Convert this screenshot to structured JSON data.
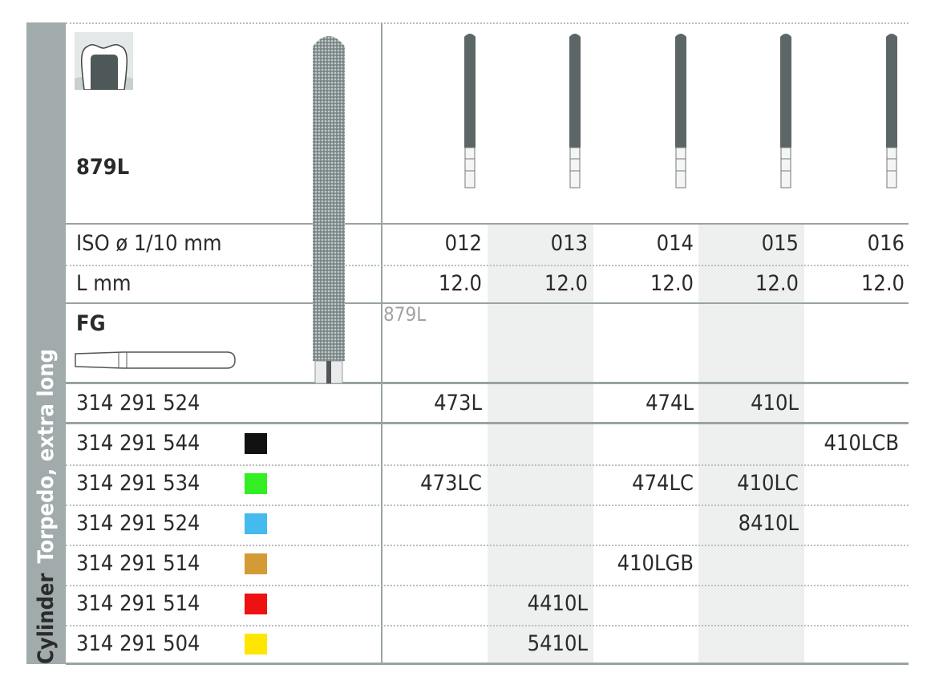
{
  "side_label": {
    "shape": "Cylinder",
    "desc": "Torpedo, extra long"
  },
  "model": "879L",
  "ghost_model": "879L",
  "shank_type": "FG",
  "rows_header": {
    "iso_label": "ISO ø 1/10 mm",
    "length_label": "L mm"
  },
  "columns": [
    {
      "iso": "012",
      "length": "12.0"
    },
    {
      "iso": "013",
      "length": "12.0"
    },
    {
      "iso": "014",
      "length": "12.0"
    },
    {
      "iso": "015",
      "length": "12.0"
    },
    {
      "iso": "016",
      "length": "12.0"
    }
  ],
  "products": [
    {
      "code": "314 291 524",
      "color": "",
      "cells": [
        "473L",
        "",
        "474L",
        "410L",
        ""
      ]
    },
    {
      "code": "314 291 544",
      "color": "#111111",
      "cells": [
        "",
        "",
        "",
        "",
        "410LCB"
      ]
    },
    {
      "code": "314 291 534",
      "color": "#33ee22",
      "cells": [
        "473LC",
        "",
        "474LC",
        "410LC",
        ""
      ]
    },
    {
      "code": "314 291 524",
      "color": "#44bbee",
      "cells": [
        "",
        "",
        "",
        "8410L",
        ""
      ]
    },
    {
      "code": "314 291 514",
      "color": "#d49a35",
      "cells": [
        "",
        "",
        "410LGB",
        "",
        ""
      ]
    },
    {
      "code": "314 291 514",
      "color": "#ee1111",
      "cells": [
        "",
        "4410L",
        "",
        "",
        ""
      ]
    },
    {
      "code": "314 291 504",
      "color": "#ffe600",
      "cells": [
        "",
        "5410L",
        "",
        "",
        ""
      ]
    }
  ],
  "colors": {
    "sidebar": "#a1abab",
    "shade": "#eef0f0",
    "bur": "#5d6667"
  }
}
